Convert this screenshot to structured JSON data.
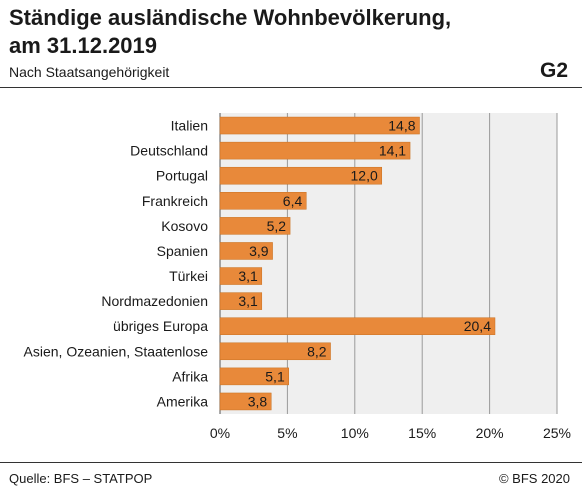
{
  "header": {
    "title": "Ständige ausländische Wohnbevölkerung, am 31.12.2019",
    "subtitle": "Nach Staatsangehörigkeit",
    "figure_id": "G2"
  },
  "footer": {
    "source": "Quelle: BFS – STATPOP",
    "copyright": "© BFS 2020"
  },
  "colors": {
    "bar": "#e8893a",
    "bar_stroke": "#c8701f",
    "plot_bg": "#efefef",
    "grid": "#9a9a9a"
  },
  "chart_data": {
    "type": "bar",
    "orientation": "horizontal",
    "unit": "%",
    "categories": [
      "Italien",
      "Deutschland",
      "Portugal",
      "Frankreich",
      "Kosovo",
      "Spanien",
      "Türkei",
      "Nordmazedonien",
      "übriges Europa",
      "Asien, Ozeanien, Staatenlose",
      "Afrika",
      "Amerika"
    ],
    "values": [
      14.8,
      14.1,
      12.0,
      6.4,
      5.2,
      3.9,
      3.1,
      3.1,
      20.4,
      8.2,
      5.1,
      3.8
    ],
    "value_labels": [
      "14,8",
      "14,1",
      "12,0",
      "6,4",
      "5,2",
      "3,9",
      "3,1",
      "3,1",
      "20,4",
      "8,2",
      "5,1",
      "3,8"
    ],
    "xlim": [
      0,
      25
    ],
    "x_ticks": [
      0,
      5,
      10,
      15,
      20,
      25
    ],
    "x_tick_labels": [
      "0%",
      "5%",
      "10%",
      "15%",
      "20%",
      "25%"
    ],
    "grid": true,
    "legend": "none"
  }
}
